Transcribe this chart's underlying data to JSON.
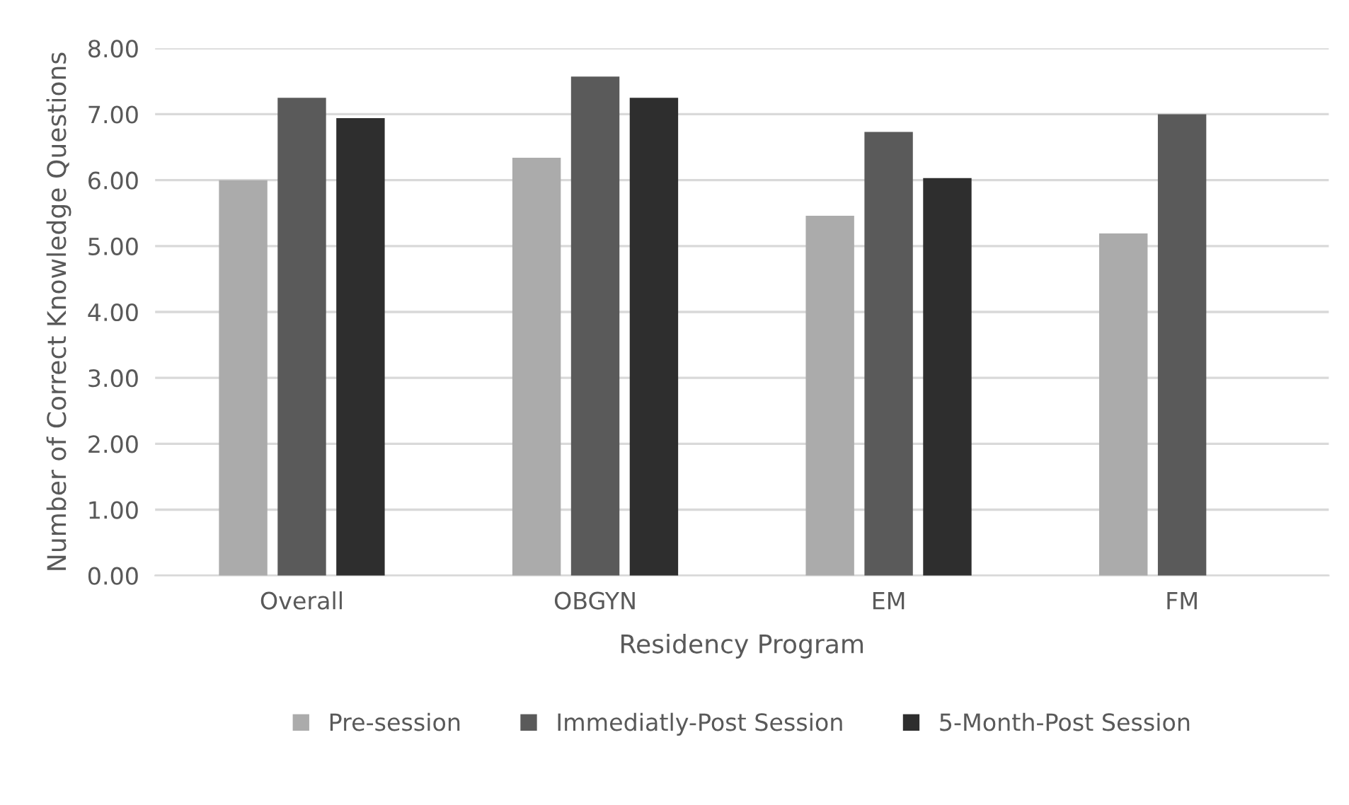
{
  "chart_data": {
    "type": "bar",
    "xlabel": "Residency Program",
    "ylabel": "Number of Correct Knowledge Questions",
    "categories": [
      "Overall",
      "OBGYN",
      "EM",
      "FM"
    ],
    "series": [
      {
        "name": "Pre-session",
        "color": "#ababab",
        "values": [
          6.0,
          6.34,
          5.46,
          5.19
        ]
      },
      {
        "name": "Immediatly-Post Session",
        "color": "#5a5a5a",
        "values": [
          7.25,
          7.57,
          6.73,
          7.0
        ]
      },
      {
        "name": "5-Month-Post Session",
        "color": "#2e2e2e",
        "values": [
          6.94,
          7.25,
          6.03,
          null
        ]
      }
    ],
    "ylim": [
      0,
      8
    ],
    "yticks": [
      {
        "value": 0,
        "label": "0.00"
      },
      {
        "value": 1,
        "label": "1.00"
      },
      {
        "value": 2,
        "label": "2.00"
      },
      {
        "value": 3,
        "label": "3.00"
      },
      {
        "value": 4,
        "label": "4.00"
      },
      {
        "value": 5,
        "label": "5.00"
      },
      {
        "value": 6,
        "label": "6.00"
      },
      {
        "value": 7,
        "label": "7.00"
      },
      {
        "value": 8,
        "label": "8.00"
      }
    ],
    "grid": "y",
    "legend": "bottom"
  }
}
